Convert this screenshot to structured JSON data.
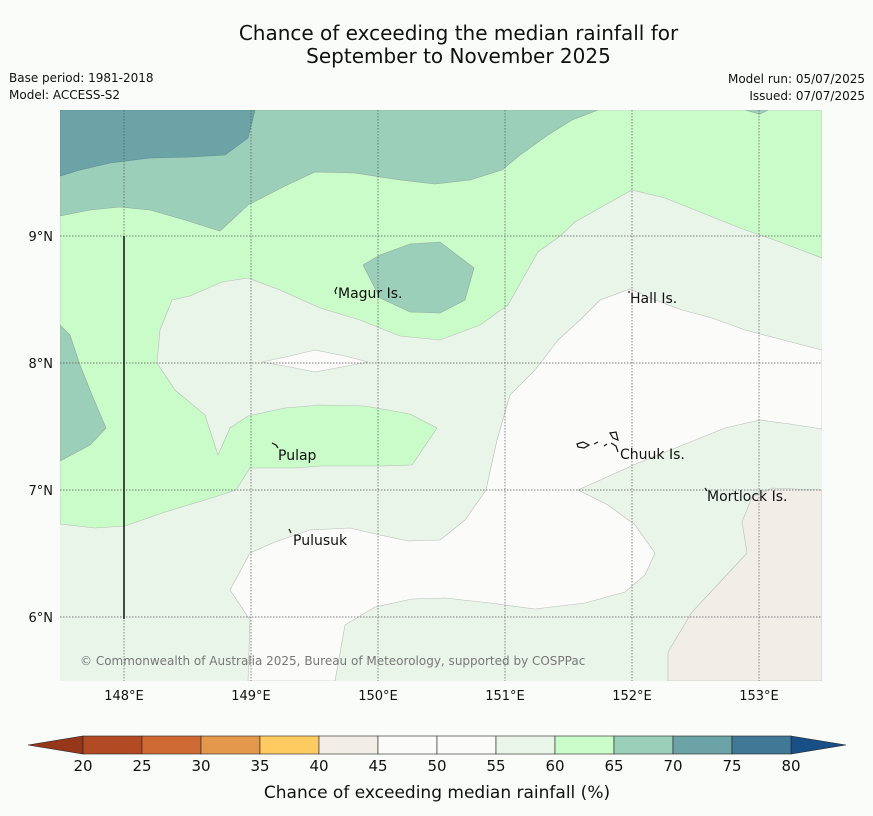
{
  "header": {
    "title_line1": "Chance of exceeding the median rainfall for",
    "title_line2": "September to November 2025",
    "base_period": "Base period: 1981-2018",
    "model": "Model: ACCESS-S2",
    "model_run": "Model run: 05/07/2025",
    "issued": "Issued: 07/07/2025"
  },
  "map": {
    "lon_ticks": [
      "148°E",
      "149°E",
      "150°E",
      "151°E",
      "152°E",
      "153°E"
    ],
    "lat_ticks": [
      "9°N",
      "8°N",
      "7°N",
      "6°N"
    ],
    "places": [
      {
        "name": "Magur Is."
      },
      {
        "name": "Hall Is."
      },
      {
        "name": "Pulap"
      },
      {
        "name": "Chuuk Is."
      },
      {
        "name": "Mortlock Is."
      },
      {
        "name": "Pulusuk"
      }
    ],
    "copyright": "© Commonwealth of Australia 2025, Bureau of Meteorology, supported by COSPPac"
  },
  "colorbar": {
    "title": "Chance of exceeding median rainfall (%)",
    "labels": [
      "20",
      "25",
      "30",
      "35",
      "40",
      "45",
      "50",
      "55",
      "60",
      "65",
      "70",
      "75",
      "80"
    ],
    "colors": [
      "#b24a24",
      "#cf6a35",
      "#e3984c",
      "#fdcb60",
      "#f2ede6",
      "#fbfbf9",
      "#fbfbf9",
      "#eaf5ea",
      "#c9fcc9",
      "#9ccfba",
      "#6ca3a6",
      "#417896"
    ],
    "under_color": "#96361b",
    "over_color": "#174f86"
  }
}
